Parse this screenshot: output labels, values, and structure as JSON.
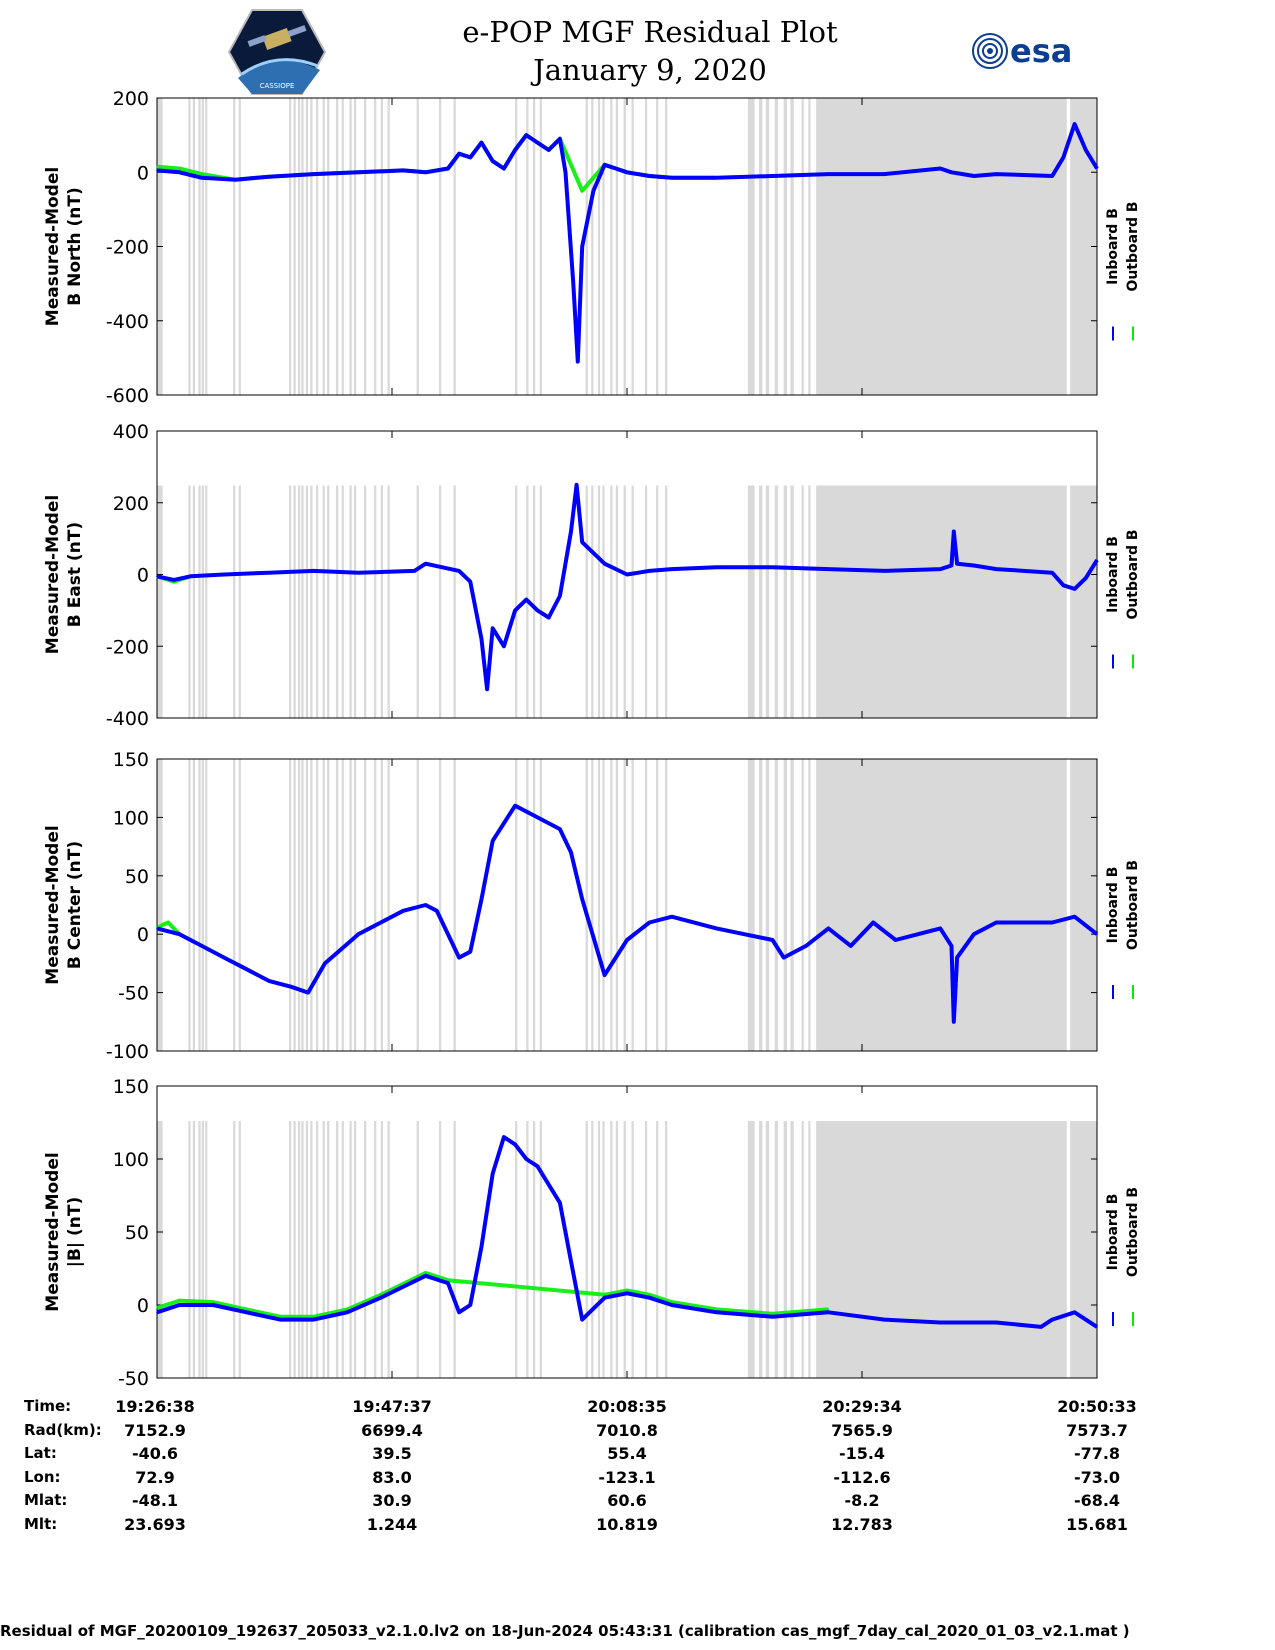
{
  "header": {
    "title_line1": "e-POP MGF Residual Plot",
    "title_line2": "January 9, 2020",
    "left_logo": "cassiope-satellite-logo",
    "left_logo_text": "CASSIOPE",
    "right_logo_text": "esa"
  },
  "colors": {
    "inboard": "#0000ff",
    "outboard": "#00ee00",
    "gap_shading": "#d9d9d9"
  },
  "legend": {
    "inboard_label": "Inboard B",
    "outboard_label": "Outboard B"
  },
  "chart_data": [
    {
      "type": "line",
      "panel": "b-north",
      "ylabel_line1": "Measured-Model",
      "ylabel_line2": "B North (nT)",
      "ylim": [
        -600,
        200
      ],
      "yticks": [
        200,
        0,
        -200,
        -400,
        -600
      ],
      "xlim": [
        0,
        84.0
      ],
      "series": [
        {
          "name": "Inboard B",
          "x": [
            0,
            2,
            4,
            7,
            10,
            14,
            18,
            22,
            24,
            26,
            27,
            28,
            29,
            30,
            31,
            32,
            33,
            34,
            35,
            36,
            36.5,
            37.2,
            37.6,
            38,
            39,
            40,
            41,
            42,
            44,
            46,
            50,
            55,
            60,
            65,
            70,
            71,
            72,
            73,
            75,
            80,
            81,
            82,
            83,
            84
          ],
          "values": [
            5,
            0,
            -15,
            -20,
            -12,
            -5,
            0,
            5,
            0,
            10,
            50,
            40,
            80,
            30,
            10,
            60,
            100,
            80,
            60,
            90,
            0,
            -300,
            -510,
            -200,
            -50,
            20,
            10,
            0,
            -10,
            -15,
            -15,
            -10,
            -5,
            -5,
            10,
            0,
            -5,
            -10,
            -5,
            -10,
            40,
            130,
            60,
            10
          ]
        },
        {
          "name": "Outboard B",
          "x": [
            0,
            2,
            4,
            7,
            10,
            14,
            18,
            22,
            24,
            26,
            27,
            28,
            29,
            30,
            31,
            32,
            33,
            34,
            35,
            36,
            38,
            40,
            41,
            42,
            44,
            46,
            50
          ],
          "values": [
            15,
            10,
            -5,
            -20,
            -12,
            -5,
            0,
            5,
            0,
            10,
            50,
            40,
            80,
            30,
            10,
            60,
            100,
            80,
            60,
            90,
            -50,
            20,
            10,
            0,
            -10,
            -15,
            -15
          ]
        }
      ]
    },
    {
      "type": "line",
      "panel": "b-east",
      "ylabel_line1": "Measured-Model",
      "ylabel_line2": "B East (nT)",
      "ylim": [
        -400,
        400
      ],
      "yticks": [
        400,
        200,
        0,
        -200,
        -400
      ],
      "xlim": [
        0,
        84.0
      ],
      "series": [
        {
          "name": "Inboard B",
          "x": [
            0,
            1.5,
            3,
            6,
            10,
            14,
            18,
            23,
            24,
            27,
            28,
            29,
            29.5,
            30,
            31,
            32,
            33,
            34,
            35,
            36,
            37,
            37.5,
            38,
            40,
            42,
            44,
            46,
            50,
            55,
            60,
            65,
            70,
            71,
            71.2,
            71.5,
            73,
            75,
            80,
            81,
            82,
            83,
            84
          ],
          "values": [
            -5,
            -15,
            -5,
            0,
            5,
            10,
            5,
            10,
            30,
            10,
            -20,
            -180,
            -320,
            -150,
            -200,
            -100,
            -70,
            -100,
            -120,
            -60,
            120,
            250,
            90,
            30,
            0,
            10,
            15,
            20,
            20,
            15,
            10,
            15,
            25,
            120,
            30,
            25,
            15,
            5,
            -30,
            -40,
            -10,
            40
          ]
        },
        {
          "name": "Outboard B",
          "x": [
            0,
            0.5,
            1,
            1.5,
            2,
            2.5,
            3
          ],
          "values": [
            -5,
            -10,
            -15,
            -20,
            -15,
            -10,
            -5
          ]
        }
      ]
    },
    {
      "type": "line",
      "panel": "b-center",
      "ylabel_line1": "Measured-Model",
      "ylabel_line2": "B Center (nT)",
      "ylim": [
        -100,
        150
      ],
      "yticks": [
        150,
        100,
        50,
        0,
        -50,
        -100
      ],
      "xlim": [
        0,
        84.0
      ],
      "series": [
        {
          "name": "Inboard B",
          "x": [
            0,
            2,
            4,
            6,
            8,
            10,
            12,
            13.5,
            15,
            18,
            20,
            22,
            24,
            25,
            26,
            27,
            28,
            29,
            30,
            32,
            34,
            36,
            37,
            38,
            40,
            42,
            44,
            46,
            50,
            55,
            56,
            58,
            60,
            62,
            64,
            66,
            68,
            70,
            71,
            71.2,
            71.5,
            73,
            75,
            80,
            82,
            84
          ],
          "values": [
            5,
            0,
            -10,
            -20,
            -30,
            -40,
            -45,
            -50,
            -25,
            0,
            10,
            20,
            25,
            20,
            0,
            -20,
            -15,
            30,
            80,
            110,
            100,
            90,
            70,
            30,
            -35,
            -5,
            10,
            15,
            5,
            -5,
            -20,
            -10,
            5,
            -10,
            10,
            -5,
            0,
            5,
            -10,
            -75,
            -20,
            0,
            10,
            10,
            15,
            0
          ]
        },
        {
          "name": "Outboard B",
          "x": [
            0,
            0.5,
            1,
            1.5,
            2
          ],
          "values": [
            5,
            8,
            10,
            5,
            0
          ]
        }
      ]
    },
    {
      "type": "line",
      "panel": "b-magnitude",
      "ylabel_line1": "Measured-Model",
      "ylabel_line2": "|B| (nT)",
      "ylim": [
        -50,
        150
      ],
      "yticks": [
        150,
        100,
        50,
        0,
        -50
      ],
      "xlim": [
        0,
        84.0
      ],
      "series": [
        {
          "name": "Inboard B",
          "x": [
            0,
            2,
            5,
            8,
            11,
            14,
            17,
            20,
            24,
            26,
            27,
            28,
            29,
            30,
            31,
            32,
            33,
            34,
            36,
            37,
            38,
            40,
            42,
            44,
            46,
            50,
            55,
            60,
            65,
            70,
            75,
            79,
            80,
            82,
            84
          ],
          "values": [
            -5,
            0,
            0,
            -5,
            -10,
            -10,
            -5,
            5,
            20,
            15,
            -5,
            0,
            40,
            90,
            115,
            110,
            100,
            95,
            70,
            30,
            -10,
            5,
            8,
            5,
            0,
            -5,
            -8,
            -5,
            -10,
            -12,
            -12,
            -15,
            -10,
            -5,
            -15
          ]
        },
        {
          "name": "Outboard B",
          "x": [
            0,
            2,
            5,
            8,
            11,
            14,
            17,
            20,
            24,
            26,
            40,
            42,
            44,
            46,
            50,
            55,
            60
          ],
          "values": [
            -2,
            3,
            2,
            -3,
            -8,
            -8,
            -3,
            7,
            22,
            17,
            7,
            10,
            7,
            2,
            -3,
            -6,
            -3
          ]
        }
      ]
    }
  ],
  "x_axis": {
    "tick_positions": [
      0,
      21,
      42,
      63,
      84
    ],
    "rows": [
      {
        "label": "Time:",
        "values": [
          "19:26:38",
          "19:47:37",
          "20:08:35",
          "20:29:34",
          "20:50:33"
        ]
      },
      {
        "label": "Rad(km):",
        "values": [
          "7152.9",
          "6699.4",
          "7010.8",
          "7565.9",
          "7573.7"
        ]
      },
      {
        "label": "Lat:",
        "values": [
          "-40.6",
          "39.5",
          "55.4",
          "-15.4",
          "-77.8"
        ]
      },
      {
        "label": "Lon:",
        "values": [
          "72.9",
          "83.0",
          "-123.1",
          "-112.6",
          "-73.0"
        ]
      },
      {
        "label": "Mlat:",
        "values": [
          "-48.1",
          "30.9",
          "60.6",
          "-8.2",
          "-68.4"
        ]
      },
      {
        "label": "Mlt:",
        "values": [
          "23.693",
          "1.244",
          "10.819",
          "12.783",
          "15.681"
        ]
      }
    ]
  },
  "gaps": [
    [
      0.0,
      0.5
    ],
    [
      2.8,
      3.0
    ],
    [
      3.2,
      3.4
    ],
    [
      3.7,
      3.9
    ],
    [
      4.0,
      4.2
    ],
    [
      4.3,
      4.5
    ],
    [
      6.8,
      7.0
    ],
    [
      7.3,
      7.5
    ],
    [
      11.8,
      12.0
    ],
    [
      12.2,
      12.4
    ],
    [
      12.6,
      12.8
    ],
    [
      12.9,
      13.1
    ],
    [
      13.3,
      13.5
    ],
    [
      13.7,
      13.9
    ],
    [
      14.2,
      14.4
    ],
    [
      14.8,
      15.0
    ],
    [
      15.2,
      15.4
    ],
    [
      16.0,
      16.2
    ],
    [
      16.5,
      16.7
    ],
    [
      17.2,
      17.4
    ],
    [
      17.6,
      17.8
    ],
    [
      18.5,
      18.7
    ],
    [
      19.4,
      19.6
    ],
    [
      20.0,
      20.2
    ],
    [
      20.6,
      20.8
    ],
    [
      23.2,
      23.4
    ],
    [
      25.2,
      25.4
    ],
    [
      26.5,
      26.7
    ],
    [
      32.0,
      32.2
    ],
    [
      33.0,
      33.2
    ],
    [
      33.6,
      33.8
    ],
    [
      34.2,
      34.4
    ],
    [
      38.3,
      38.5
    ],
    [
      38.8,
      39.0
    ],
    [
      39.4,
      39.6
    ],
    [
      39.8,
      40.0
    ],
    [
      40.5,
      40.7
    ],
    [
      41.0,
      41.2
    ],
    [
      41.7,
      41.9
    ],
    [
      42.4,
      42.6
    ],
    [
      43.6,
      43.8
    ],
    [
      44.6,
      44.8
    ],
    [
      45.4,
      45.6
    ],
    [
      52.8,
      53.4
    ],
    [
      53.8,
      54.1
    ],
    [
      54.4,
      54.7
    ],
    [
      55.2,
      55.5
    ],
    [
      56.0,
      56.3
    ],
    [
      56.6,
      56.9
    ],
    [
      57.6,
      57.8
    ],
    [
      58.2,
      58.4
    ],
    [
      58.9,
      81.3
    ],
    [
      81.6,
      84.0
    ]
  ]
}
